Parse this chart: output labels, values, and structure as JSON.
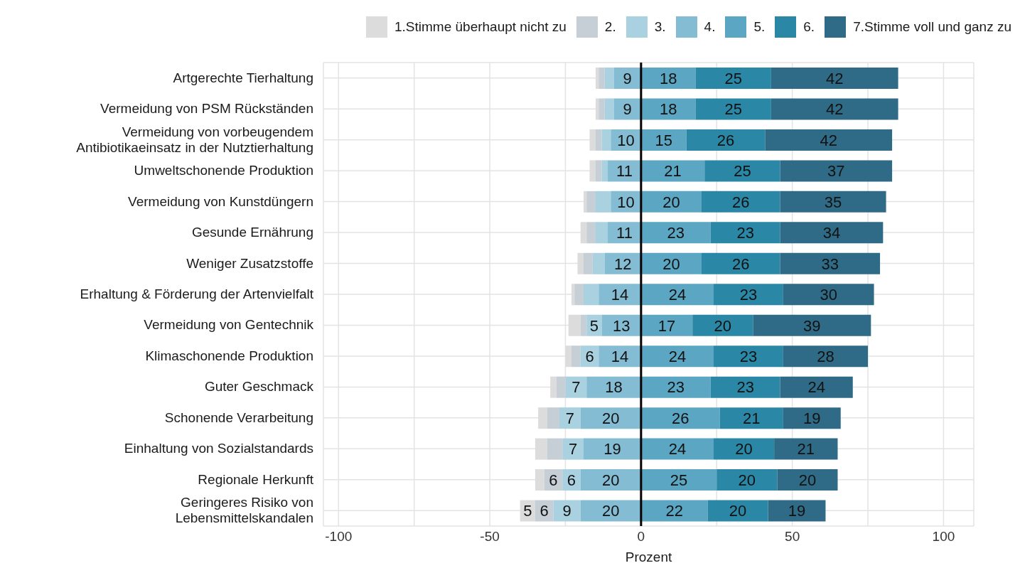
{
  "chart_data": {
    "type": "bar",
    "orientation": "horizontal",
    "xlabel": "Prozent",
    "legend": "top right",
    "grid": true,
    "categories": [
      "Artgerechte Tierhaltung",
      "Vermeidung von PSM Rückständen",
      "Vermeidung von vorbeugendem Antibiotikaeinsatz in der Nutztierhaltung",
      "Umweltschonende Produktion",
      "Vermeidung von Kunstdüngern",
      "Gesunde Ernährung",
      "Weniger Zusatzstoffe",
      "Erhaltung & Förderung der Artenvielfalt",
      "Vermeidung von Gentechnik",
      "Klimaschonende Produktion",
      "Guter Geschmack",
      "Schonende Verarbeitung",
      "Einhaltung von Sozialstandards",
      "Regionale Herkunft",
      "Geringeres Risiko von Lebensmittelskandalen"
    ],
    "xlim": [
      -105,
      110
    ],
    "xticks": [
      {
        "value": -100,
        "label": "-100"
      },
      {
        "value": -75,
        "label": null
      },
      {
        "value": -50,
        "label": "-50"
      },
      {
        "value": -25,
        "label": null
      },
      {
        "value": 0,
        "label": "0"
      },
      {
        "value": 25,
        "label": null
      },
      {
        "value": 50,
        "label": "50"
      },
      {
        "value": 75,
        "label": null
      },
      {
        "value": 100,
        "label": "100"
      }
    ],
    "ref_lines": [
      {
        "axis": "x",
        "value": 0,
        "color": "#000000"
      }
    ],
    "series": [
      {
        "name": "1.Stimme überhaupt nicht zu",
        "color": "#dcdcdc",
        "values": [
          1,
          1,
          2,
          2,
          1,
          2,
          2,
          1,
          4,
          2,
          2,
          3,
          4,
          3,
          5
        ],
        "base": [
          -15,
          -15,
          -17,
          -17,
          -19,
          -20,
          -21,
          -23,
          -24,
          -25,
          -30,
          -34,
          -35,
          -35,
          -40
        ],
        "value_labels": [
          null,
          null,
          null,
          null,
          null,
          null,
          null,
          null,
          null,
          null,
          null,
          null,
          null,
          null,
          "5"
        ]
      },
      {
        "name": "2.",
        "color": "#c6ced6",
        "values": [
          2,
          2,
          2,
          2,
          3,
          3,
          3,
          3,
          2,
          3,
          3,
          4,
          5,
          6,
          6
        ],
        "base": [
          -14,
          -14,
          -15,
          -15,
          -18,
          -18,
          -19,
          -22,
          -20,
          -23,
          -28,
          -31,
          -31,
          -32,
          -35
        ],
        "value_labels": [
          null,
          null,
          null,
          null,
          null,
          null,
          null,
          null,
          null,
          null,
          null,
          null,
          null,
          "6",
          "6"
        ]
      },
      {
        "name": "3.",
        "color": "#a9d1df",
        "values": [
          3,
          3,
          3,
          2,
          5,
          4,
          4,
          5,
          5,
          6,
          7,
          7,
          7,
          6,
          9
        ],
        "base": [
          -12,
          -12,
          -13,
          -13,
          -15,
          -15,
          -16,
          -19,
          -18,
          -20,
          -25,
          -27,
          -26,
          -26,
          -29
        ],
        "value_labels": [
          null,
          null,
          null,
          null,
          null,
          null,
          null,
          null,
          "5",
          "6",
          "7",
          "7",
          "7",
          "6",
          "9"
        ]
      },
      {
        "name": "4.",
        "color": "#84bdd3",
        "values": [
          9,
          9,
          10,
          11,
          10,
          11,
          12,
          14,
          13,
          14,
          18,
          20,
          19,
          20,
          20
        ],
        "base": [
          -9,
          -9,
          -10,
          -11,
          -10,
          -11,
          -12,
          -14,
          -13,
          -14,
          -18,
          -20,
          -19,
          -20,
          -20
        ],
        "value_labels": [
          "9",
          "9",
          "10",
          "11",
          "10",
          "11",
          "12",
          "14",
          "13",
          "14",
          "18",
          "20",
          "19",
          "20",
          "20"
        ]
      },
      {
        "name": "5.",
        "color": "#5ba6c3",
        "values": [
          18,
          18,
          15,
          21,
          20,
          23,
          20,
          24,
          17,
          24,
          23,
          26,
          24,
          25,
          22
        ],
        "base": [
          0,
          0,
          0,
          0,
          0,
          0,
          0,
          0,
          0,
          0,
          0,
          0,
          0,
          0,
          0
        ],
        "value_labels": [
          "18",
          "18",
          "15",
          "21",
          "20",
          "23",
          "20",
          "24",
          "17",
          "24",
          "23",
          "26",
          "24",
          "25",
          "22"
        ]
      },
      {
        "name": "6.",
        "color": "#2b87a6",
        "values": [
          25,
          25,
          26,
          25,
          26,
          23,
          26,
          23,
          20,
          23,
          23,
          21,
          20,
          20,
          20
        ],
        "base": [
          18,
          18,
          15,
          21,
          20,
          23,
          20,
          24,
          17,
          24,
          23,
          26,
          24,
          25,
          22
        ],
        "value_labels": [
          "25",
          "25",
          "26",
          "25",
          "26",
          "23",
          "26",
          "23",
          "20",
          "23",
          "23",
          "21",
          "20",
          "20",
          "20"
        ]
      },
      {
        "name": "7.Stimme voll und ganz zu",
        "color": "#2f6b86",
        "values": [
          42,
          42,
          42,
          37,
          35,
          34,
          33,
          30,
          39,
          28,
          24,
          19,
          21,
          20,
          19
        ],
        "base": [
          43,
          43,
          41,
          46,
          46,
          46,
          46,
          47,
          37,
          47,
          46,
          47,
          44,
          45,
          42
        ],
        "value_labels": [
          "42",
          "42",
          "42",
          "37",
          "35",
          "34",
          "33",
          "30",
          "39",
          "28",
          "24",
          "19",
          "21",
          "20",
          "19"
        ]
      }
    ]
  }
}
